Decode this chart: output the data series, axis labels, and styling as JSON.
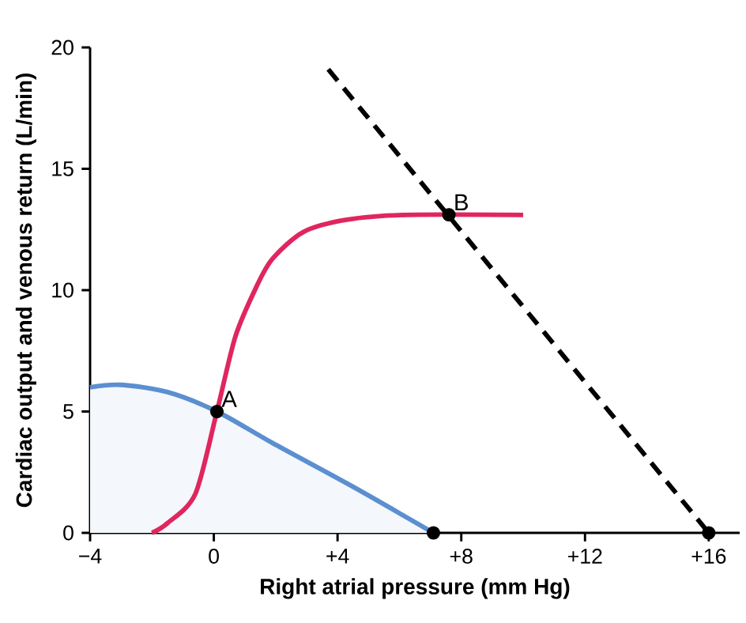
{
  "chart_data": {
    "type": "line",
    "xlabel": "Right atrial pressure (mm Hg)",
    "ylabel": "Cardiac output and venous return (L/min)",
    "xlim": [
      -4,
      17
    ],
    "ylim": [
      0,
      20
    ],
    "xticks": [
      {
        "value": -4,
        "label": "−4"
      },
      0,
      {
        "value": 4,
        "label": "+4"
      },
      {
        "value": 8,
        "label": "+8"
      },
      {
        "value": 12,
        "label": "+12"
      },
      {
        "value": 16,
        "label": "+16"
      }
    ],
    "yticks": [
      0,
      5,
      10,
      15,
      20
    ],
    "grid": false,
    "series": [
      {
        "type": "area",
        "color": "#5b8fd0",
        "marker": "none",
        "x": [
          -4,
          -3.0,
          -1.5,
          0.1,
          1.9,
          4.5,
          7.1
        ],
        "values": [
          6.0,
          6.1,
          5.8,
          5.0,
          3.7,
          1.9,
          0
        ]
      },
      {
        "color": "#e0265e",
        "marker": "none",
        "x": [
          -2.0,
          -1.5,
          -0.6,
          0.1,
          0.7,
          1.4,
          1.9,
          2.9,
          4.3,
          6.2,
          10.0
        ],
        "values": [
          0,
          0.4,
          1.6,
          5.0,
          8.1,
          10.2,
          11.3,
          12.4,
          12.9,
          13.1,
          13.1
        ]
      },
      {
        "color": "#000000",
        "marker": "none",
        "line_style": "dashed",
        "x": [
          3.7,
          16
        ],
        "values": [
          19.1,
          0
        ]
      },
      {
        "type": "scatter",
        "color": "#000000",
        "marker": "circle",
        "x": [
          0.1,
          7.6,
          7.1,
          16
        ],
        "values": [
          5.0,
          13.1,
          0,
          0
        ]
      }
    ],
    "annotations": [
      {
        "text": "A",
        "x": 0.1,
        "y": 5.0
      },
      {
        "text": "B",
        "x": 7.6,
        "y": 13.1
      }
    ]
  }
}
